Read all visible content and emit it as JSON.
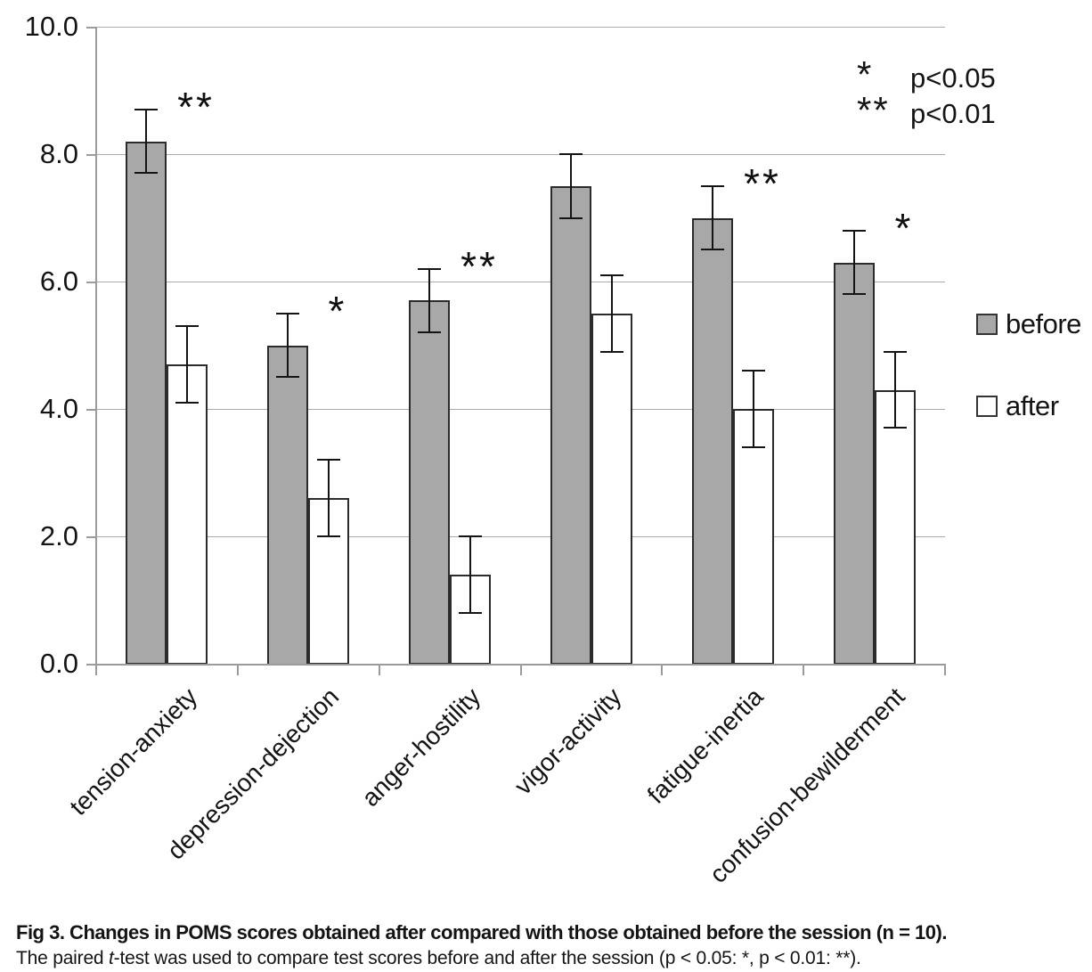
{
  "chart_data": {
    "type": "bar",
    "title": "",
    "xlabel": "",
    "ylabel": "",
    "categories": [
      "tension-anxiety",
      "depression-dejection",
      "anger-hostility",
      "vigor-activity",
      "fatigue-inertia",
      "confusion-bewilderment"
    ],
    "series": [
      {
        "name": "before",
        "fill": "#a8a8a8",
        "values": [
          8.2,
          5.0,
          5.7,
          7.5,
          7.0,
          6.3
        ],
        "error_high": [
          8.7,
          5.5,
          6.2,
          8.0,
          7.5,
          6.8
        ],
        "error_low": [
          7.7,
          4.5,
          5.2,
          7.0,
          6.5,
          5.8
        ]
      },
      {
        "name": "after",
        "fill": "#ffffff",
        "values": [
          4.7,
          2.6,
          1.4,
          5.5,
          4.0,
          4.3
        ],
        "error_high": [
          5.3,
          3.2,
          2.0,
          6.1,
          4.6,
          4.9
        ],
        "error_low": [
          4.1,
          2.0,
          0.8,
          4.9,
          3.4,
          3.7
        ]
      }
    ],
    "significance": [
      "**",
      "*",
      "**",
      "",
      "**",
      "*"
    ],
    "ylim": [
      0,
      10
    ],
    "ytick_values": [
      0,
      2,
      4,
      6,
      8,
      10
    ],
    "ytick_labels": [
      "0.0",
      "2.0",
      "4.0",
      "6.0",
      "8.0",
      "10.0"
    ],
    "grid": true,
    "legend_position": "right"
  },
  "sig_legend": [
    {
      "symbol": "*",
      "label": "p<0.05"
    },
    {
      "symbol": "**",
      "label": "p<0.01"
    }
  ],
  "series_legend": [
    {
      "name": "before",
      "fill": "#a8a8a8"
    },
    {
      "name": "after",
      "fill": "#ffffff"
    }
  ],
  "caption": {
    "line1": "Fig 3. Changes in POMS scores obtained after compared with those obtained before the session (n = 10).",
    "line2_prefix": "The paired ",
    "line2_italic": "t",
    "line2_suffix": "-test was used to compare test scores before and after the session (p < 0.05: *, p < 0.01: **)."
  },
  "colors": {
    "bar_before": "#a8a8a8",
    "bar_after": "#ffffff",
    "bar_border": "#2b2b2b",
    "gridline": "#ababab",
    "axis": "#9b9b9b",
    "error_bar": "#141414",
    "text": "#141414"
  }
}
